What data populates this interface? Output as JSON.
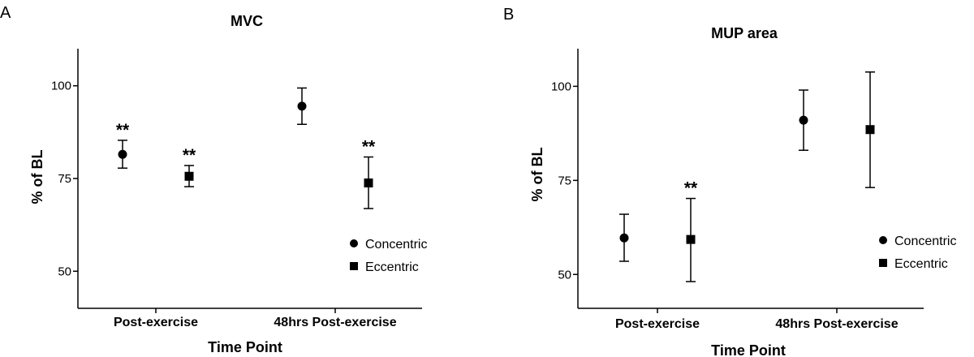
{
  "chart_data": [
    {
      "panel": "A",
      "type": "scatter",
      "title": "MVC",
      "xlabel": "Time Point",
      "ylabel": "% of BL",
      "categories": [
        "Post-exercise",
        "48hrs Post-exercise"
      ],
      "ylim": [
        40,
        110
      ],
      "yticks": [
        50,
        75,
        100
      ],
      "grid": false,
      "legend_position": "right",
      "series": [
        {
          "name": "Concentric",
          "marker": "circle",
          "values": [
            81.5,
            94.5
          ],
          "err_low": [
            77.8,
            89.6
          ],
          "err_high": [
            85.3,
            99.4
          ],
          "sig": [
            "**",
            ""
          ]
        },
        {
          "name": "Eccentric",
          "marker": "square",
          "values": [
            75.6,
            73.8
          ],
          "err_low": [
            72.8,
            66.9
          ],
          "err_high": [
            78.5,
            80.8
          ],
          "sig": [
            "**",
            "**"
          ]
        }
      ]
    },
    {
      "panel": "B",
      "type": "scatter",
      "title": "MUP area",
      "xlabel": "Time Point",
      "ylabel": "% of BL",
      "categories": [
        "Post-exercise",
        "48hrs Post-exercise"
      ],
      "ylim": [
        41,
        110
      ],
      "yticks": [
        50,
        75,
        100
      ],
      "grid": false,
      "legend_position": "right",
      "series": [
        {
          "name": "Concentric",
          "marker": "circle",
          "values": [
            59.7,
            91.0
          ],
          "err_low": [
            53.5,
            83.0
          ],
          "err_high": [
            66.0,
            99.0
          ],
          "sig": [
            "",
            ""
          ]
        },
        {
          "name": "Eccentric",
          "marker": "square",
          "values": [
            59.3,
            88.5
          ],
          "err_low": [
            48.1,
            73.1
          ],
          "err_high": [
            70.2,
            103.8
          ],
          "sig": [
            "**",
            ""
          ]
        }
      ]
    }
  ]
}
